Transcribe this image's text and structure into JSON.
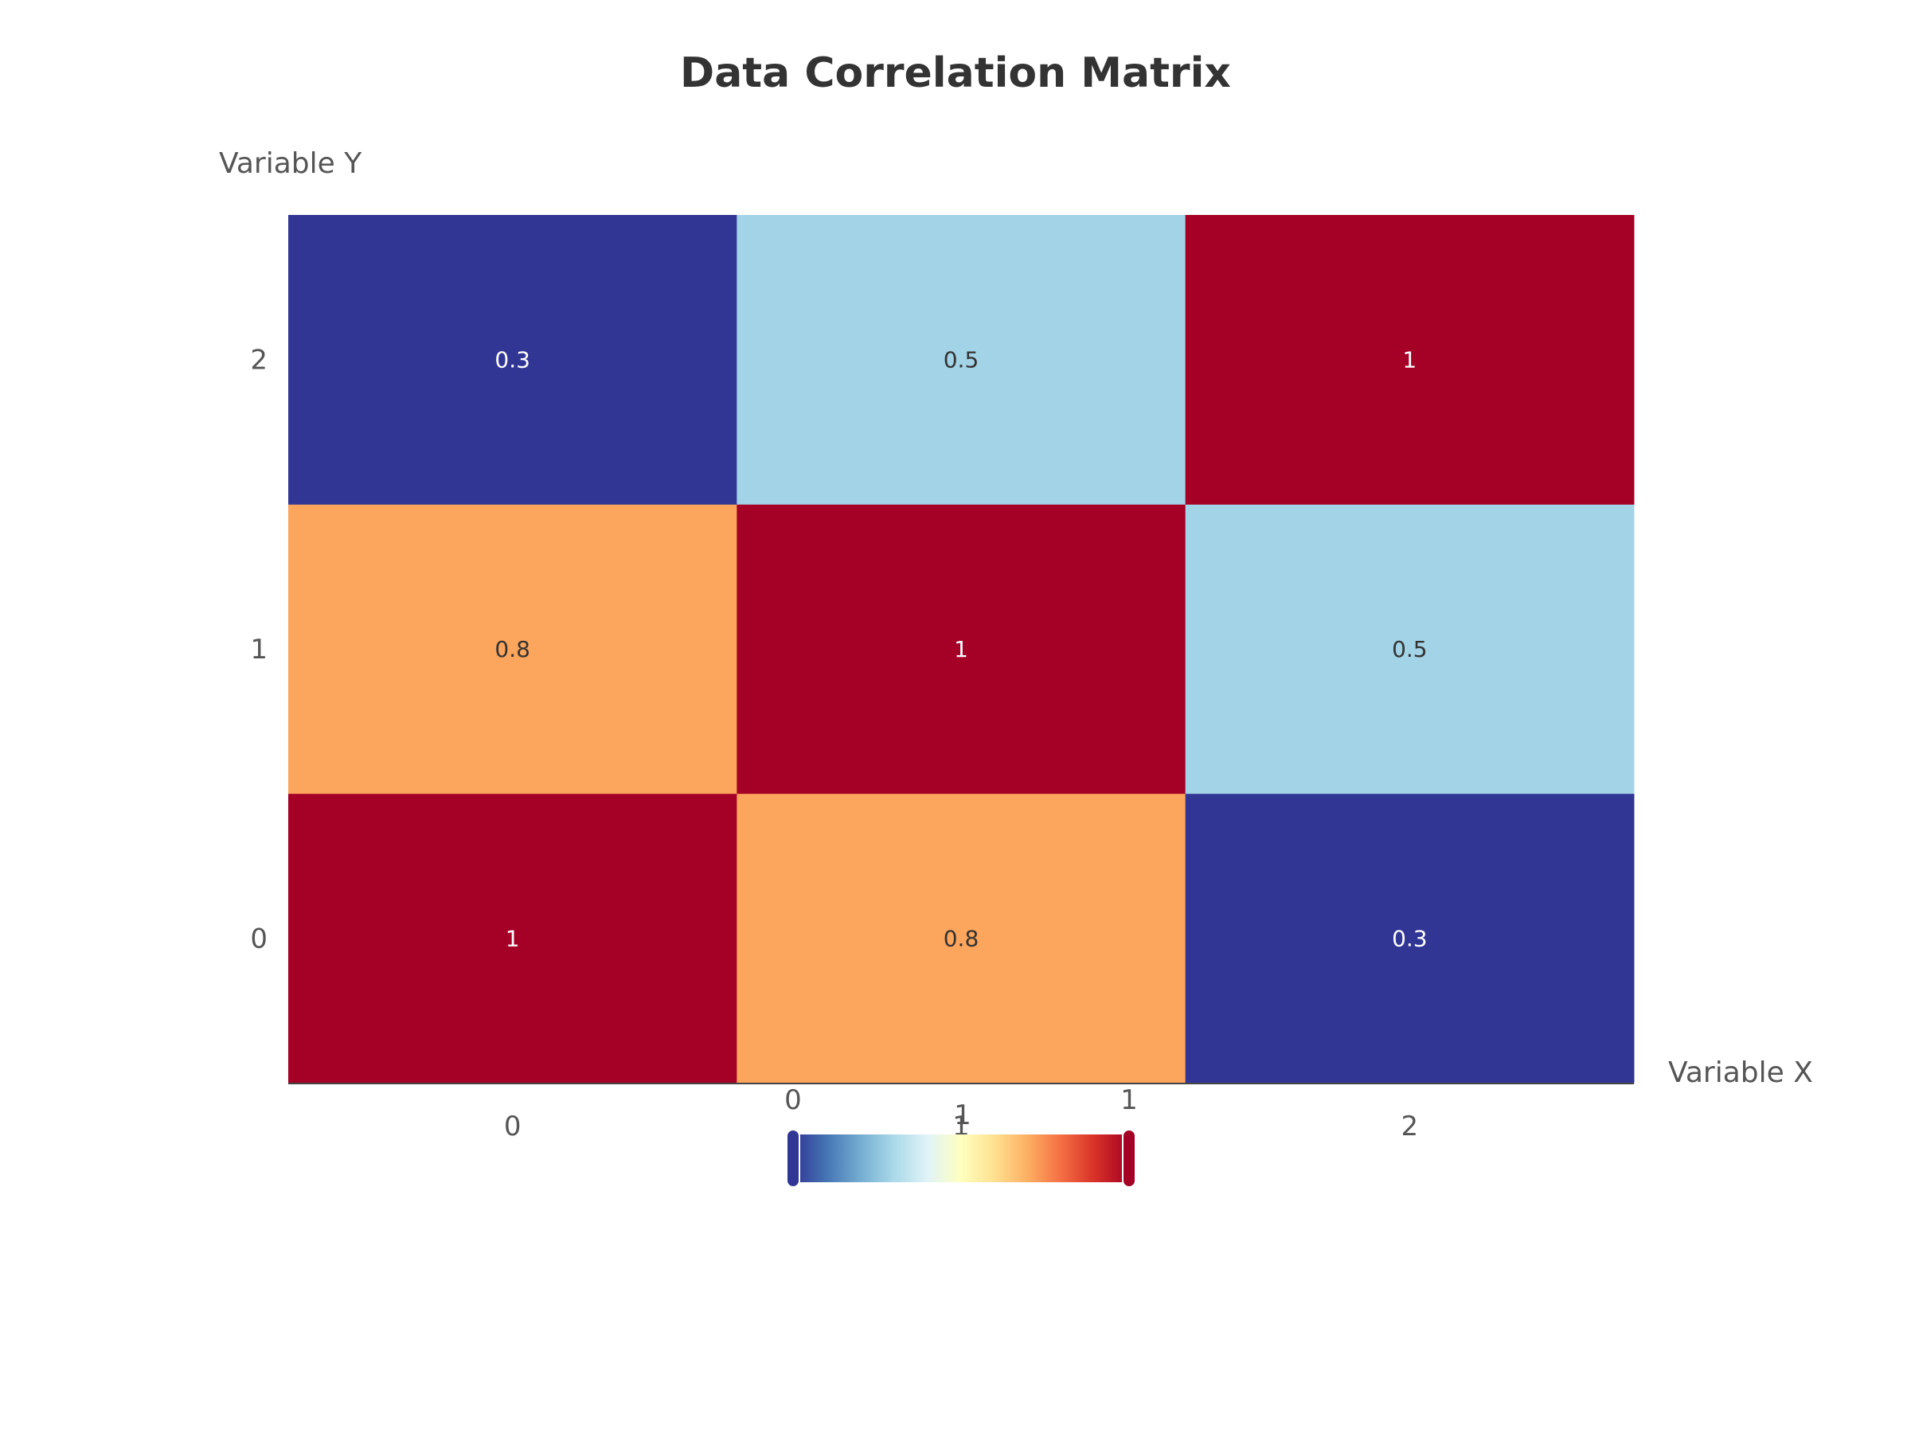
{
  "chart_data": {
    "type": "heatmap",
    "title": "Data Correlation Matrix",
    "xlabel": "Variable X",
    "ylabel": "Variable Y",
    "x_categories": [
      "0",
      "1",
      "2"
    ],
    "y_categories": [
      "0",
      "1",
      "2"
    ],
    "values": [
      [
        1,
        0.8,
        0.3
      ],
      [
        0.8,
        1,
        0.5
      ],
      [
        0.3,
        0.5,
        1
      ]
    ],
    "value_labels": [
      [
        "1",
        "0.8",
        "0.3"
      ],
      [
        "0.8",
        "1",
        "0.5"
      ],
      [
        "0.3",
        "0.5",
        "1"
      ]
    ],
    "colorscale": [
      "#313695",
      "#4575b4",
      "#74add1",
      "#abd9e9",
      "#e0f3f8",
      "#ffffbf",
      "#fee090",
      "#fdae61",
      "#f46d43",
      "#d73027",
      "#a50026"
    ],
    "cell_colors": {
      "0.3": "#313695",
      "0.5": "#a3d3e6",
      "0.8": "#fca55d",
      "1": "#a50026"
    },
    "colorbar": {
      "orientation": "horizontal",
      "tick_labels": [
        "0",
        "1",
        "1"
      ],
      "range_slider": true
    },
    "grid": false,
    "legend": "none"
  }
}
